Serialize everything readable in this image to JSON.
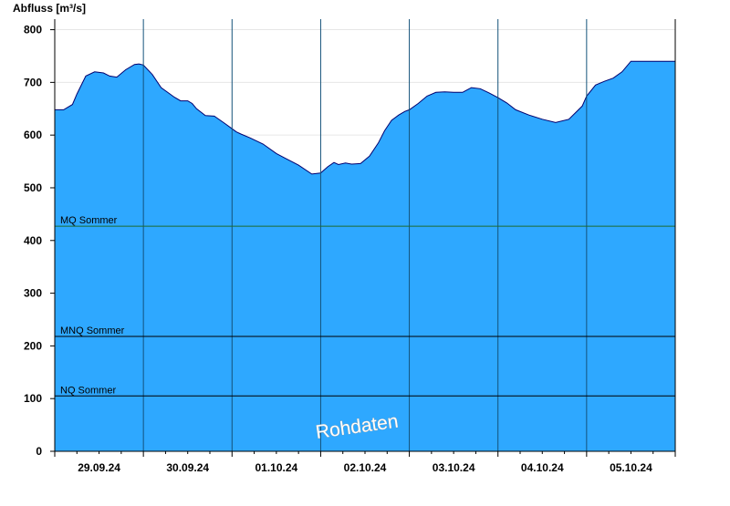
{
  "chart_data": {
    "type": "area",
    "title": "",
    "ylabel": "Abfluss [m³/s]",
    "xlabel": "",
    "ylim": [
      0,
      820
    ],
    "yticks": [
      0,
      100,
      200,
      300,
      400,
      500,
      600,
      700,
      800
    ],
    "xlim": [
      0,
      7
    ],
    "day_labels": [
      "29.09.24",
      "30.09.24",
      "01.10.24",
      "02.10.24",
      "03.10.24",
      "04.10.24",
      "05.10.24"
    ],
    "grid": true,
    "fill_color": "#2ea8ff",
    "line_color": "#00006e",
    "series": [
      {
        "x": [
          0,
          0.1,
          0.2,
          0.25,
          0.35,
          0.45,
          0.5,
          0.55,
          0.62,
          0.7,
          0.8,
          0.9,
          0.95,
          1.0,
          1.1,
          1.2,
          1.3,
          1.35,
          1.42,
          1.5,
          1.55,
          1.6,
          1.7,
          1.8,
          1.92,
          2.0,
          2.05,
          2.1,
          2.2,
          2.35,
          2.5,
          2.6,
          2.75,
          2.9,
          3.0,
          3.08,
          3.15,
          3.2,
          3.28,
          3.35,
          3.45,
          3.55,
          3.65,
          3.72,
          3.8,
          3.88,
          3.95,
          4.0,
          4.1,
          4.2,
          4.3,
          4.4,
          4.5,
          4.6,
          4.7,
          4.8,
          4.9,
          5.0,
          5.1,
          5.2,
          5.35,
          5.5,
          5.65,
          5.8,
          5.95,
          6.0,
          6.1,
          6.2,
          6.3,
          6.4,
          6.5,
          6.6,
          6.7,
          6.8,
          6.9,
          7.0
        ],
        "y": [
          648,
          648,
          658,
          678,
          712,
          720,
          719,
          718,
          712,
          710,
          724,
          734,
          735,
          733,
          715,
          690,
          678,
          672,
          665,
          665,
          660,
          650,
          637,
          636,
          622,
          612,
          606,
          602,
          595,
          583,
          565,
          556,
          543,
          526,
          528,
          540,
          548,
          544,
          547,
          545,
          546,
          560,
          585,
          608,
          628,
          638,
          645,
          648,
          660,
          674,
          681,
          682,
          681,
          681,
          690,
          688,
          680,
          671,
          661,
          648,
          638,
          630,
          624,
          630,
          655,
          674,
          695,
          702,
          708,
          720,
          740,
          740,
          740,
          740,
          740,
          740
        ]
      }
    ],
    "reference_lines": [
      {
        "name": "MQ Sommer",
        "value": 427,
        "color": "#1e6b2e"
      },
      {
        "name": "MNQ Sommer",
        "value": 218,
        "color": "#000000"
      },
      {
        "name": "NQ Sommer",
        "value": 105,
        "color": "#000000"
      }
    ],
    "annotations": [
      {
        "text": "Rohdaten"
      }
    ]
  }
}
